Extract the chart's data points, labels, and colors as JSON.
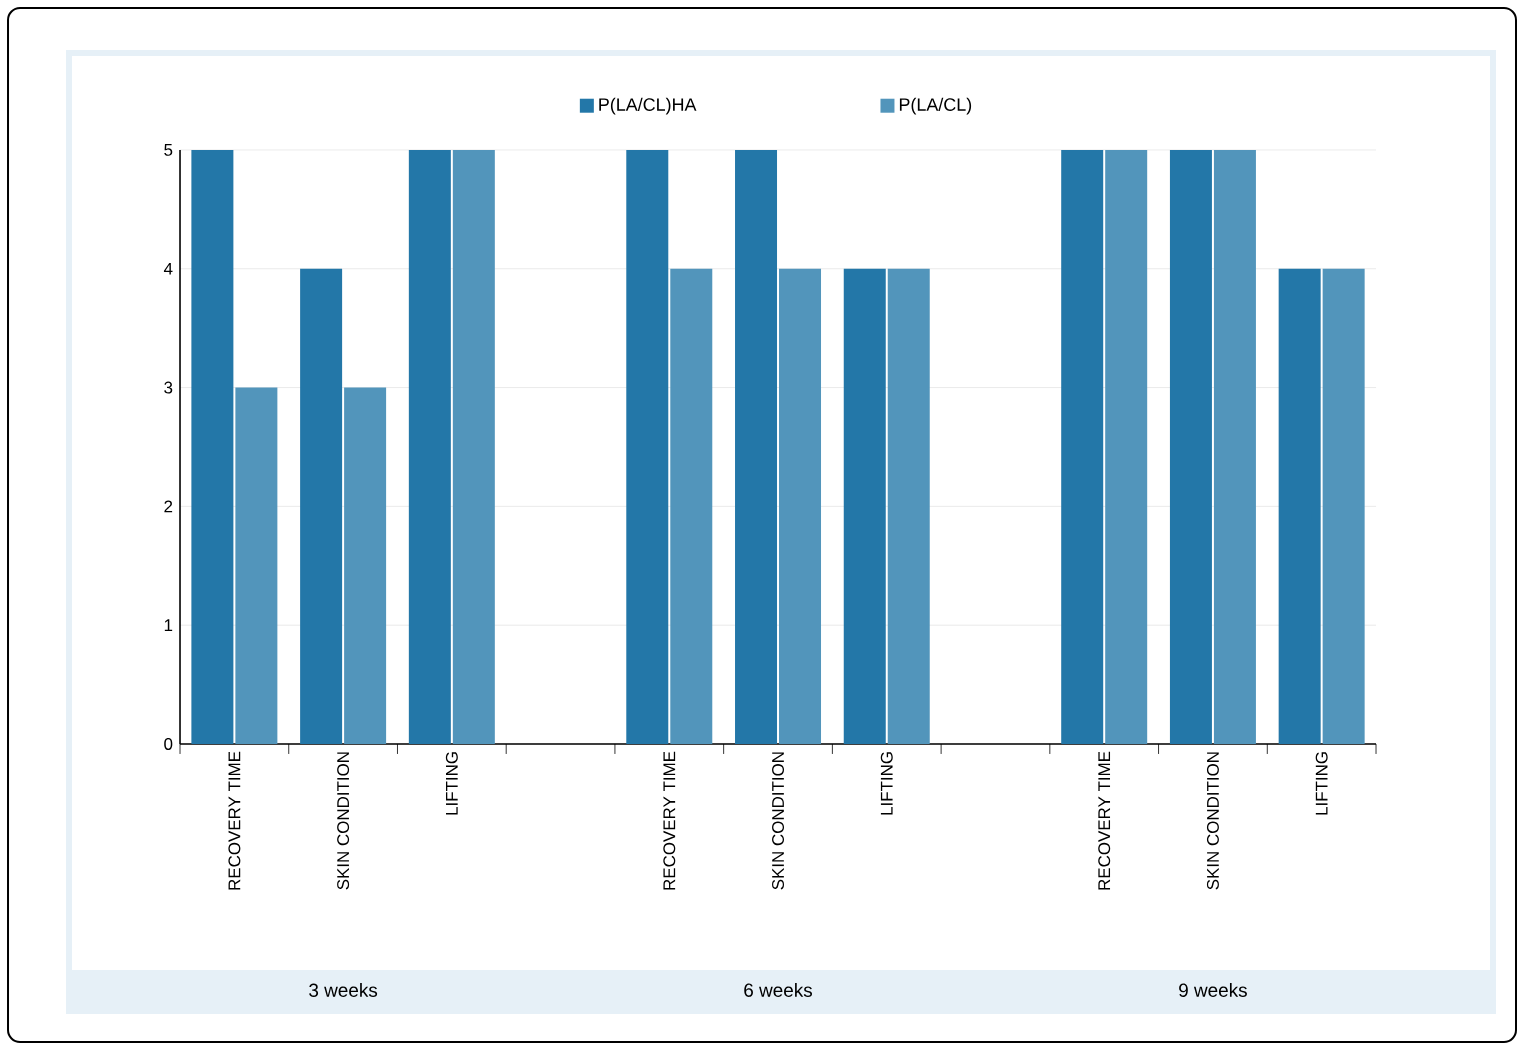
{
  "chart_data": {
    "type": "bar",
    "categories": [
      "RECOVERY TIME",
      "SKIN CONDITION",
      "LIFTING",
      null,
      "RECOVERY TIME",
      "SKIN CONDITION",
      "LIFTING",
      null,
      "RECOVERY TIME",
      "SKIN CONDITION",
      "LIFTING"
    ],
    "series": [
      {
        "name": "P(LA/CL)HA",
        "color": "#2377a8",
        "values": [
          5,
          4,
          5,
          null,
          5,
          5,
          4,
          null,
          5,
          5,
          4
        ]
      },
      {
        "name": "P(LA/CL)",
        "color": "#5295bb",
        "values": [
          3,
          3,
          5,
          null,
          4,
          4,
          4,
          null,
          5,
          5,
          4
        ]
      }
    ],
    "annotations": [
      "3 weeks",
      "6 weeks",
      "9 weeks"
    ],
    "ylim": [
      0,
      5
    ],
    "yticks": [
      0,
      1,
      2,
      3,
      4,
      5
    ],
    "grid": "y",
    "legend": "top"
  }
}
